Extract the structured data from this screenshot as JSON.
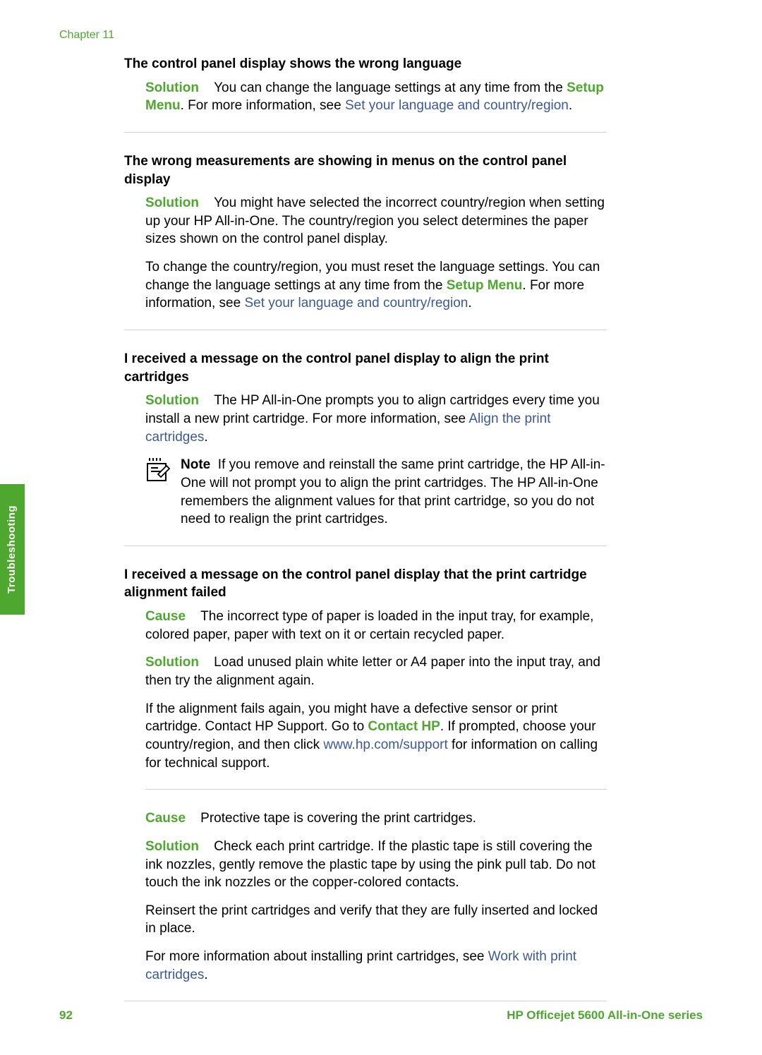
{
  "chapter": "Chapter 11",
  "sidebar_label": "Troubleshooting",
  "page_number": "92",
  "footer_title": "HP Officejet 5600 All-in-One series",
  "labels": {
    "solution": "Solution",
    "cause": "Cause",
    "note": "Note"
  },
  "sections": [
    {
      "heading": "The control panel display shows the wrong language",
      "blocks": [
        {
          "label": "solution",
          "pre": "You can change the language settings at any time from the ",
          "bold_green": "Setup Menu",
          "post1": ". For more information, see ",
          "link": "Set your language and country/region",
          "post2": "."
        }
      ]
    },
    {
      "heading": "The wrong measurements are showing in menus on the control panel display",
      "blocks": [
        {
          "label": "solution",
          "text": "You might have selected the incorrect country/region when setting up your HP All-in-One. The country/region you select determines the paper sizes shown on the control panel display."
        },
        {
          "pre": "To change the country/region, you must reset the language settings. You can change the language settings at any time from the ",
          "bold_green": "Setup Menu",
          "post1": ". For more information, see ",
          "link": "Set your language and country/region",
          "post2": "."
        }
      ]
    },
    {
      "heading": "I received a message on the control panel display to align the print cartridges",
      "blocks": [
        {
          "label": "solution",
          "pre": "The HP All-in-One prompts you to align cartridges every time you install a new print cartridge. For more information, see ",
          "link": "Align the print cartridges",
          "post2": "."
        }
      ],
      "note": "If you remove and reinstall the same print cartridge, the HP All-in-One will not prompt you to align the print cartridges. The HP All-in-One remembers the alignment values for that print cartridge, so you do not need to realign the print cartridges."
    },
    {
      "heading": "I received a message on the control panel display that the print cartridge alignment failed",
      "blocks": [
        {
          "label": "cause",
          "text": "The incorrect type of paper is loaded in the input tray, for example, colored paper, paper with text on it or certain recycled paper."
        },
        {
          "label": "solution",
          "text": "Load unused plain white letter or A4 paper into the input tray, and then try the alignment again."
        },
        {
          "pre": "If the alignment fails again, you might have a defective sensor or print cartridge. Contact HP Support. Go to ",
          "link": "www.hp.com/support",
          "post1": ". If prompted, choose your country/region, and then click ",
          "bold_green": "Contact HP",
          "post2": " for information on calling for technical support."
        }
      ],
      "sep_after": true,
      "blocks2": [
        {
          "label": "cause",
          "text": "Protective tape is covering the print cartridges."
        },
        {
          "label": "solution",
          "text": "Check each print cartridge. If the plastic tape is still covering the ink nozzles, gently remove the plastic tape by using the pink pull tab. Do not touch the ink nozzles or the copper-colored contacts."
        },
        {
          "text": "Reinsert the print cartridges and verify that they are fully inserted and locked in place."
        },
        {
          "pre": "For more information about installing print cartridges, see ",
          "link": "Work with print cartridges",
          "post2": "."
        }
      ]
    }
  ]
}
